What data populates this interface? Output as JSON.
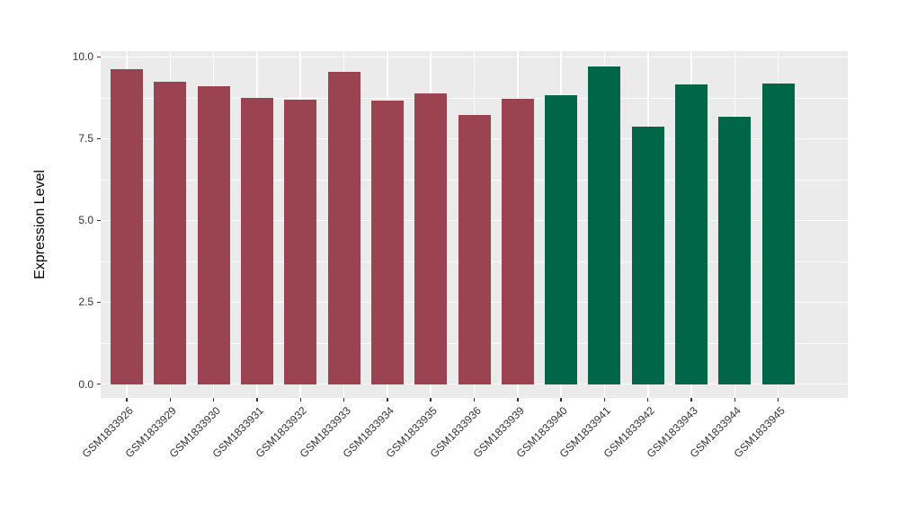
{
  "chart_data": {
    "type": "bar",
    "title": "",
    "xlabel": "",
    "ylabel": "Expression Level",
    "categories": [
      "GSM1833926",
      "GSM1833929",
      "GSM1833930",
      "GSM1833931",
      "GSM1833932",
      "GSM1833933",
      "GSM1833934",
      "GSM1833935",
      "GSM1833936",
      "GSM1833939",
      "GSM1833940",
      "GSM1833941",
      "GSM1833942",
      "GSM1833943",
      "GSM1833944",
      "GSM1833945"
    ],
    "values": [
      9.63,
      9.24,
      9.11,
      8.74,
      8.69,
      9.54,
      8.67,
      8.89,
      8.22,
      8.73,
      8.83,
      9.7,
      7.87,
      9.16,
      8.17,
      9.18
    ],
    "groups": [
      "group1",
      "group1",
      "group1",
      "group1",
      "group1",
      "group1",
      "group1",
      "group1",
      "group1",
      "group1",
      "group2",
      "group2",
      "group2",
      "group2",
      "group2",
      "group2"
    ],
    "group_colors": {
      "group1": "#9B4351",
      "group2": "#006647"
    },
    "ylim": [
      0,
      10.0
    ],
    "yticks": [
      0.0,
      2.5,
      5.0,
      7.5,
      10.0
    ],
    "ytick_labels": [
      "0.0",
      "2.5",
      "5.0",
      "7.5",
      "10.0"
    ],
    "yticks_minor": [
      1.25,
      3.75,
      6.25,
      8.75
    ],
    "grid": true,
    "legend_position": "none",
    "panel_background": "#EBEBEB",
    "gridline_color": "#FFFFFF",
    "axis_text_color": "#333333",
    "figure_background": "#FFFFFF",
    "x_label_angle_deg": 45
  }
}
